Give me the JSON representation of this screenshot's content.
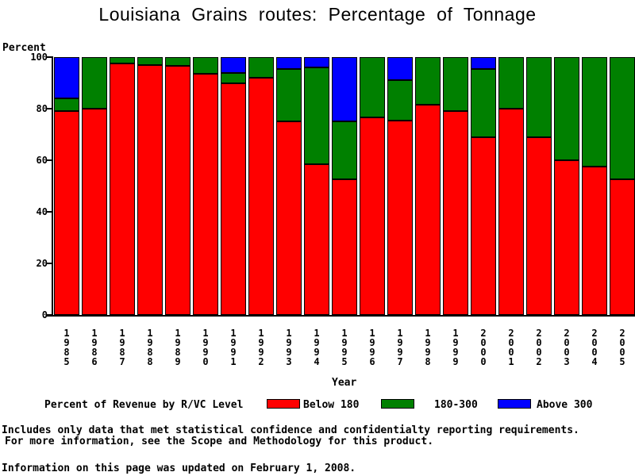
{
  "chart_data": {
    "type": "bar",
    "stacked": true,
    "title": "Louisiana Grains routes: Percentage of Tonnage",
    "xlabel": "Year",
    "ylabel": "Percent",
    "ylim": [
      0,
      100
    ],
    "yticks": [
      0,
      20,
      40,
      60,
      80,
      100
    ],
    "grid": false,
    "legend_position": "bottom",
    "legend_title": "Percent of Revenue by R/VC Level",
    "categories": [
      "1985",
      "1986",
      "1987",
      "1988",
      "1989",
      "1990",
      "1991",
      "1992",
      "1993",
      "1994",
      "1995",
      "1996",
      "1997",
      "1998",
      "1999",
      "2000",
      "2001",
      "2002",
      "2003",
      "2004",
      "2005"
    ],
    "series": [
      {
        "name": "Below 180",
        "color": "#ff0000",
        "values": [
          79,
          80,
          97.5,
          97,
          96.5,
          93.5,
          90,
          92,
          75,
          58.5,
          52.5,
          76.5,
          75.5,
          81.5,
          79,
          69,
          80,
          69,
          60,
          57.5,
          52.5
        ]
      },
      {
        "name": "180-300",
        "color": "#008000",
        "values": [
          5,
          20,
          2.5,
          3,
          3.5,
          6.5,
          4,
          8,
          20.5,
          37.5,
          22.5,
          23.5,
          15.5,
          18.5,
          21,
          26.5,
          20,
          31,
          40,
          42.5,
          47.5
        ]
      },
      {
        "name": "Above 300",
        "color": "#0000ff",
        "values": [
          16,
          0,
          0,
          0,
          0,
          0,
          6,
          0,
          4.5,
          4,
          25,
          0,
          9,
          0,
          0,
          4.5,
          0,
          0,
          0,
          0,
          0
        ]
      }
    ]
  },
  "footer": {
    "line1": "Includes only data that met statistical confidence and confidentialty reporting requirements.",
    "line2": "For more information, see the Scope and Methodology for this product.",
    "line3": "Information on this page was updated on February 1, 2008."
  }
}
